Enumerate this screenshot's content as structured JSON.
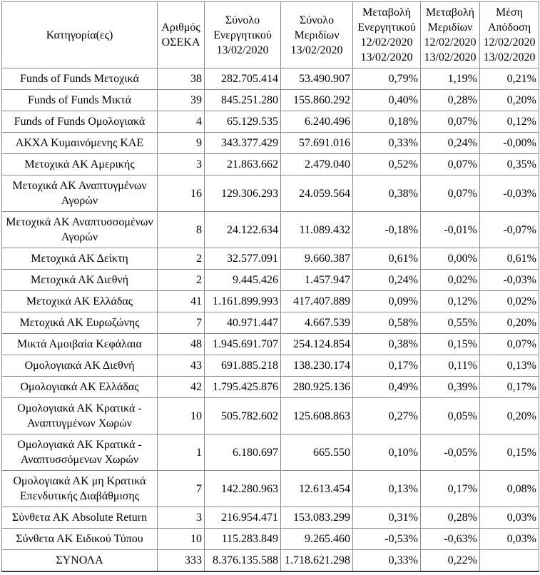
{
  "table": {
    "headers": [
      "Κατηγορία(ες)",
      "Αριθμός ΟΣΕΚΑ",
      "Σύνολο Ενεργητικού 13/02/2020",
      "Σύνολο Μεριδίων 13/02/2020",
      "Μεταβολή Ενεργητικού 12/02/2020 13/02/2020",
      "Μεταβολή Μεριδίων 12/02/2020 13/02/2020",
      "Μέση Απόδοση 12/02/2020 13/02/2020"
    ],
    "rows": [
      [
        "Funds of Funds Μετοχικά",
        "38",
        "282.705.414",
        "53.490.907",
        "0,79%",
        "1,19%",
        "0,21%"
      ],
      [
        "Funds of Funds Μικτά",
        "39",
        "845.251.280",
        "155.860.292",
        "0,40%",
        "0,28%",
        "0,20%"
      ],
      [
        "Funds of Funds Ομολογιακά",
        "4",
        "65.129.535",
        "6.240.496",
        "0,18%",
        "0,07%",
        "0,12%"
      ],
      [
        "ΑΚΧΑ Κυμαινόμενης ΚΑΕ",
        "9",
        "343.377.429",
        "57.691.016",
        "0,33%",
        "0,24%",
        "-0,00%"
      ],
      [
        "Μετοχικά ΑΚ Αμερικής",
        "3",
        "21.863.662",
        "2.479.040",
        "0,52%",
        "0,07%",
        "0,35%"
      ],
      [
        "Μετοχικά ΑΚ Αναπτυγμένων Αγορών",
        "16",
        "129.306.293",
        "24.059.564",
        "0,38%",
        "0,07%",
        "-0,03%"
      ],
      [
        "Μετοχικά ΑΚ Αναπτυσσομένων Αγορών",
        "8",
        "24.122.634",
        "11.089.432",
        "-0,18%",
        "-0,01%",
        "-0,07%"
      ],
      [
        "Μετοχικά ΑΚ Δείκτη",
        "2",
        "32.577.091",
        "9.660.387",
        "0,61%",
        "0,00%",
        "0,61%"
      ],
      [
        "Μετοχικά ΑΚ Διεθνή",
        "2",
        "9.445.426",
        "1.457.947",
        "0,24%",
        "0,02%",
        "-0,03%"
      ],
      [
        "Μετοχικά ΑΚ Ελλάδας",
        "41",
        "1.161.899.993",
        "417.407.889",
        "0,09%",
        "0,12%",
        "0,02%"
      ],
      [
        "Μετοχικά ΑΚ Ευρωζώνης",
        "7",
        "40.971.447",
        "4.667.539",
        "0,58%",
        "0,55%",
        "0,20%"
      ],
      [
        "Μικτά Αμοιβαία Κεφάλαια",
        "48",
        "1.945.691.707",
        "254.124.854",
        "0,38%",
        "0,15%",
        "0,07%"
      ],
      [
        "Ομολογιακά ΑΚ Διεθνή",
        "43",
        "691.885.218",
        "138.230.174",
        "0,17%",
        "0,11%",
        "0,13%"
      ],
      [
        "Ομολογιακά ΑΚ Ελλάδας",
        "42",
        "1.795.425.876",
        "280.925.136",
        "0,49%",
        "0,39%",
        "0,17%"
      ],
      [
        "Ομολογιακά ΑΚ Κρατικά - Αναπτυγμένων Χωρών",
        "10",
        "505.782.602",
        "125.608.863",
        "0,27%",
        "0,05%",
        "0,20%"
      ],
      [
        "Ομολογιακά ΑΚ Κρατικά - Αναπτυσσόμενων Χωρών",
        "1",
        "6.180.697",
        "665.550",
        "0,10%",
        "-0,05%",
        "0,15%"
      ],
      [
        "Ομολογιακά ΑΚ μη Κρατικά Επενδυτικής Διαβάθμισης",
        "7",
        "142.280.963",
        "12.613.454",
        "0,13%",
        "0,17%",
        "0,08%"
      ],
      [
        "Σύνθετα ΑΚ Absolute Return",
        "3",
        "216.954.471",
        "153.083.299",
        "0,31%",
        "0,28%",
        "0,03%"
      ],
      [
        "Σύνθετα ΑΚ Ειδικού Τύπου",
        "10",
        "115.283.849",
        "9.265.460",
        "-0,53%",
        "-0,63%",
        "0,03%"
      ],
      [
        "ΣΥΝΟΛΑ",
        "333",
        "8.376.135.588",
        "1.718.621.298",
        "0,33%",
        "0,22%",
        ""
      ]
    ]
  }
}
